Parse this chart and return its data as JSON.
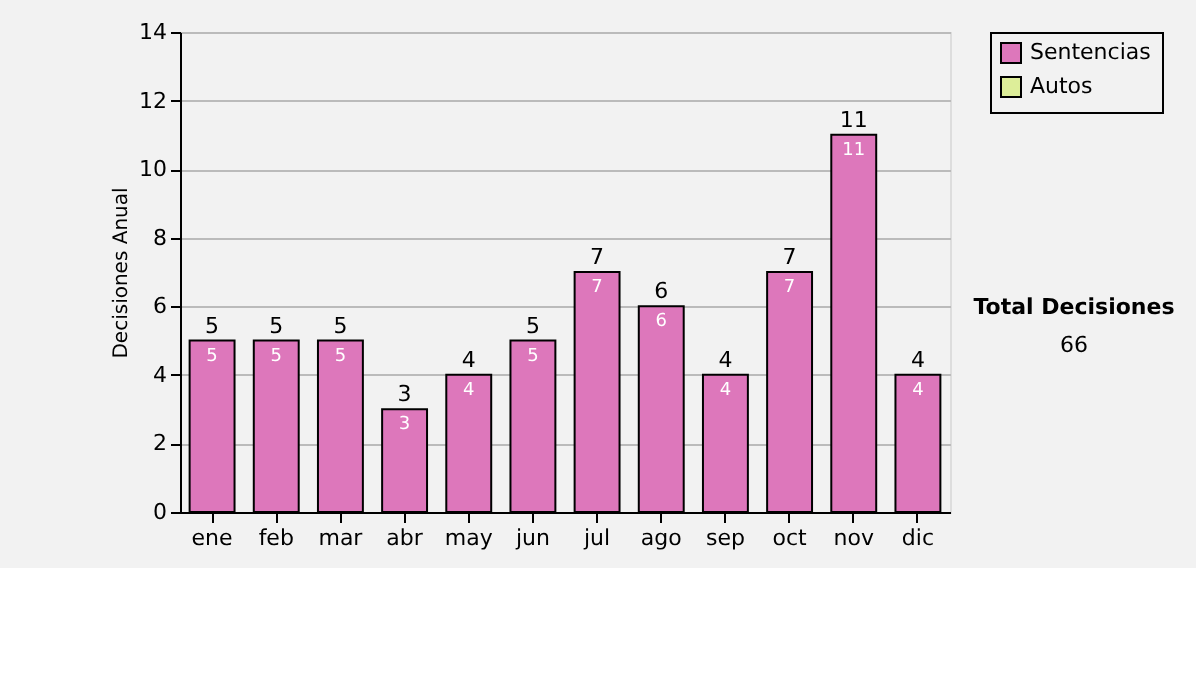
{
  "chart_data": {
    "type": "bar",
    "stacked": true,
    "ylabel": "Decisiones Anual",
    "categories": [
      "ene",
      "feb",
      "mar",
      "abr",
      "may",
      "jun",
      "jul",
      "ago",
      "sep",
      "oct",
      "nov",
      "dic"
    ],
    "series": [
      {
        "name": "Sentencias",
        "color": "#dd77bb",
        "values": [
          5,
          5,
          5,
          3,
          4,
          5,
          7,
          6,
          4,
          7,
          11,
          4
        ]
      },
      {
        "name": "Autos",
        "color": "#ddee99",
        "values": [
          null,
          null,
          null,
          null,
          null,
          null,
          null,
          null,
          null,
          null,
          null,
          null
        ]
      }
    ],
    "data_labels": true,
    "totals": [
      "5",
      "5",
      "5",
      "3",
      "4",
      "5",
      "7",
      "6",
      "4",
      "7",
      "11",
      "4"
    ],
    "ylim": [
      0,
      14
    ],
    "yticks": [
      0,
      2,
      4,
      6,
      8,
      10,
      12,
      14
    ],
    "grid": "y",
    "legend": "right",
    "annotations": [
      "Total Decisiones",
      "66"
    ]
  }
}
